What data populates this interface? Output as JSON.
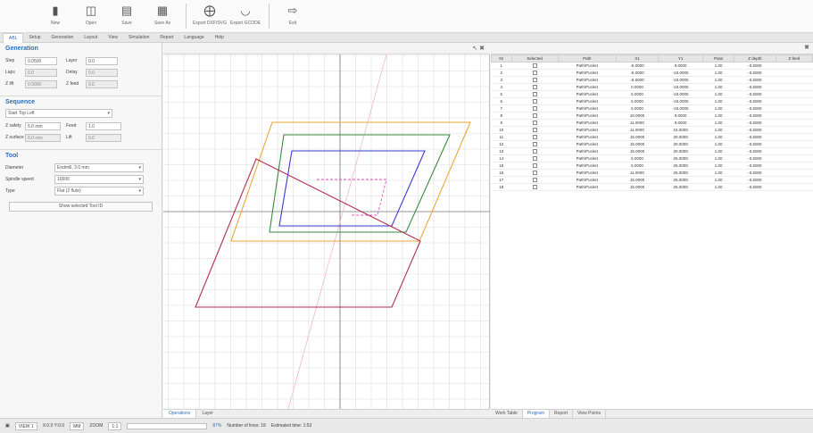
{
  "toolbar": {
    "buttons": [
      {
        "label": "New",
        "icon": "file-icon"
      },
      {
        "label": "Open",
        "icon": "folder-icon"
      },
      {
        "label": "Save",
        "icon": "save-icon"
      },
      {
        "label": "Save As",
        "icon": "save-as-icon"
      },
      {
        "label": "Export DXF/SVG",
        "icon": "export-icon"
      },
      {
        "label": "Export GCODE",
        "icon": "gcode-icon"
      },
      {
        "label": "Exit",
        "icon": "exit-icon"
      }
    ]
  },
  "ribbon": {
    "tabs": [
      "ABL",
      "Setup",
      "Generation",
      "Layout",
      "View",
      "Simulation",
      "Report",
      "Language",
      "Help"
    ]
  },
  "left_panel": {
    "generation": {
      "title": "Generation",
      "rows": [
        {
          "a_label": "Step",
          "a_value": "0.0500",
          "b_label": "Layer",
          "b_value": "0.0"
        },
        {
          "a_label": "Laps",
          "a_value": "0.0",
          "b_label": "Delay",
          "b_value": "0.0"
        },
        {
          "a_label": "Z lift",
          "a_value": "0.0000",
          "b_label": "Z feed",
          "b_value": "0.0"
        }
      ]
    },
    "sequence": {
      "title": "Sequence",
      "mode": "Start Top Left",
      "rows": [
        {
          "a_label": "Z safety",
          "a_value": "5.0 mm",
          "b_label": "Feed",
          "b_value": "1.0"
        },
        {
          "a_label": "Z surface",
          "a_value": "0.0 mm",
          "b_label": "Lift",
          "b_value": "0.0"
        }
      ]
    },
    "tool": {
      "title": "Tool",
      "rows": [
        {
          "label": "Diameter",
          "value": "Endmill, 3.0 mm"
        },
        {
          "label": "Spindle speed",
          "value": "10000"
        },
        {
          "label": "Type",
          "value": "Flat (2 flute)"
        }
      ],
      "button": "Show selected Tool ID"
    }
  },
  "graph": {
    "controls": "↖ ✖",
    "tabs": [
      "Operations",
      "Layer"
    ]
  },
  "table": {
    "panel_control": "✖",
    "columns": [
      "Nr",
      "Selected",
      "Path",
      "X1",
      "Y1",
      "Pass",
      "Z depth",
      "Z feed"
    ],
    "rows": [
      {
        "nr": "1",
        "path": "Path/Pocket",
        "x": "-5.0000",
        "y": "0.0000",
        "pass": "1.00",
        "z": "-0.5000"
      },
      {
        "nr": "2",
        "path": "Path/Pocket",
        "x": "-5.0000",
        "y": "-10.0000",
        "pass": "1.00",
        "z": "-0.5000"
      },
      {
        "nr": "3",
        "path": "Path/Pocket",
        "x": "-6.6000",
        "y": "-10.0000",
        "pass": "1.00",
        "z": "-0.5000"
      },
      {
        "nr": "4",
        "path": "Path/Pocket",
        "x": "0.0000",
        "y": "-10.0000",
        "pass": "1.00",
        "z": "-0.5000"
      },
      {
        "nr": "5",
        "path": "Path/Pocket",
        "x": "5.0000",
        "y": "-10.0000",
        "pass": "1.00",
        "z": "-0.5000"
      },
      {
        "nr": "6",
        "path": "Path/Pocket",
        "x": "5.0000",
        "y": "-15.0000",
        "pass": "1.00",
        "z": "-0.5000"
      },
      {
        "nr": "7",
        "path": "Path/Pocket",
        "x": "5.0000",
        "y": "-15.0000",
        "pass": "1.00",
        "z": "-0.5000"
      },
      {
        "nr": "8",
        "path": "Path/Pocket",
        "x": "10.0000",
        "y": "0.0000",
        "pass": "1.00",
        "z": "-0.5000"
      },
      {
        "nr": "9",
        "path": "Path/Pocket",
        "x": "11.0000",
        "y": "0.0000",
        "pass": "1.00",
        "z": "-0.5000"
      },
      {
        "nr": "10",
        "path": "Path/Pocket",
        "x": "11.0000",
        "y": "15.0000",
        "pass": "1.00",
        "z": "-0.5000"
      },
      {
        "nr": "11",
        "path": "Path/Pocket",
        "x": "15.0000",
        "y": "20.0000",
        "pass": "1.00",
        "z": "-0.5000"
      },
      {
        "nr": "12",
        "path": "Path/Pocket",
        "x": "15.0000",
        "y": "20.0000",
        "pass": "1.00",
        "z": "-0.5000"
      },
      {
        "nr": "13",
        "path": "Path/Pocket",
        "x": "15.0000",
        "y": "20.0000",
        "pass": "1.00",
        "z": "-0.5000"
      },
      {
        "nr": "14",
        "path": "Path/Pocket",
        "x": "5.0000",
        "y": "25.0000",
        "pass": "1.00",
        "z": "-0.5000"
      },
      {
        "nr": "15",
        "path": "Path/Pocket",
        "x": "5.0000",
        "y": "25.0000",
        "pass": "1.00",
        "z": "-0.5000"
      },
      {
        "nr": "16",
        "path": "Path/Pocket",
        "x": "11.0000",
        "y": "25.0000",
        "pass": "1.00",
        "z": "-0.5000"
      },
      {
        "nr": "17",
        "path": "Path/Pocket",
        "x": "15.0000",
        "y": "25.0000",
        "pass": "1.00",
        "z": "-0.5000"
      },
      {
        "nr": "18",
        "path": "Path/Pocket",
        "x": "15.0000",
        "y": "25.0000",
        "pass": "1.00",
        "z": "-0.5000"
      }
    ],
    "tabs": [
      "Work Table",
      "Program",
      "Report",
      "View Points"
    ]
  },
  "statusbar": {
    "mode": "VIEW 1",
    "coords": "X:0.0 Y:0.0",
    "units": "MM",
    "zoom_label": "ZOOM",
    "zoom": "1:1",
    "percent": "87%",
    "segments": "Number of lines: 18",
    "elapsed": "Estimated time: 1:53"
  },
  "colors": {
    "outer": "#e8a838",
    "green": "#3a8a3a",
    "blue": "#3a3ad8",
    "red": "#b03050",
    "pink": "#e050c0",
    "guide": "#f0b8c8"
  }
}
